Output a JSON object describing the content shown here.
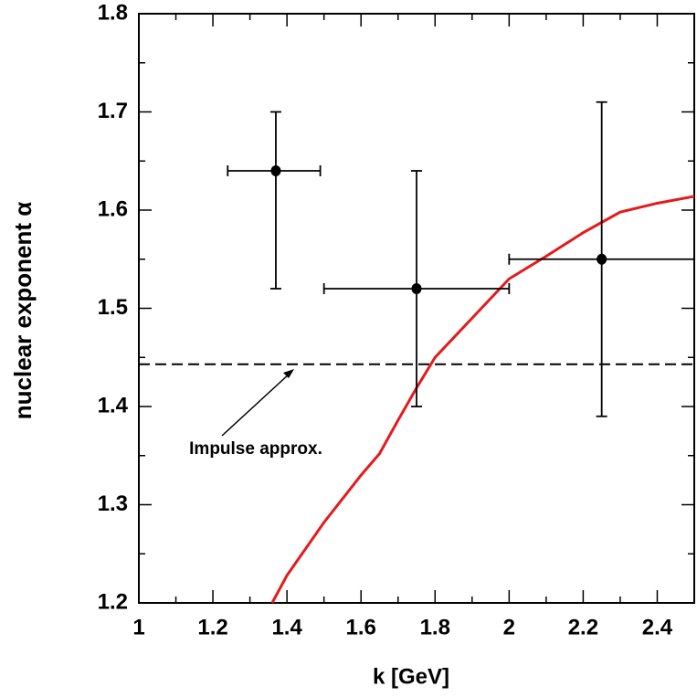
{
  "chart_data": {
    "type": "errorbar",
    "xlabel": "k [GeV]",
    "ylabel": "nuclear exponent α",
    "xlim": [
      1,
      2.5
    ],
    "ylim": [
      1.2,
      1.8
    ],
    "xticks": [
      1,
      1.2,
      1.4,
      1.6,
      1.8,
      2,
      2.2,
      2.4
    ],
    "yticks": [
      1.2,
      1.3,
      1.4,
      1.5,
      1.6,
      1.7,
      1.8
    ],
    "xminorticks": [
      1.1,
      1.3,
      1.5,
      1.7,
      1.9,
      2.1,
      2.3
    ],
    "yminorticks": [
      1.25,
      1.35,
      1.45,
      1.55,
      1.65,
      1.75
    ],
    "points": {
      "color": "#000000",
      "x": [
        1.37,
        1.75,
        2.25
      ],
      "y": [
        1.64,
        1.52,
        1.55
      ],
      "x_low": [
        1.24,
        1.5,
        2.0
      ],
      "x_high": [
        1.49,
        2.0,
        2.5
      ],
      "y_low": [
        1.52,
        1.4,
        1.39
      ],
      "y_high": [
        1.7,
        1.64,
        1.71
      ]
    },
    "curve": {
      "color": "#e41a1c",
      "x": [
        1.36,
        1.4,
        1.5,
        1.6,
        1.65,
        1.7,
        1.75,
        1.8,
        1.9,
        2.0,
        2.1,
        2.2,
        2.3,
        2.4,
        2.5
      ],
      "y": [
        1.2,
        1.228,
        1.282,
        1.33,
        1.352,
        1.386,
        1.419,
        1.45,
        1.49,
        1.53,
        1.553,
        1.577,
        1.598,
        1.607,
        1.614
      ]
    },
    "reference_line": {
      "value": 1.443,
      "label": "Impulse approx."
    }
  }
}
